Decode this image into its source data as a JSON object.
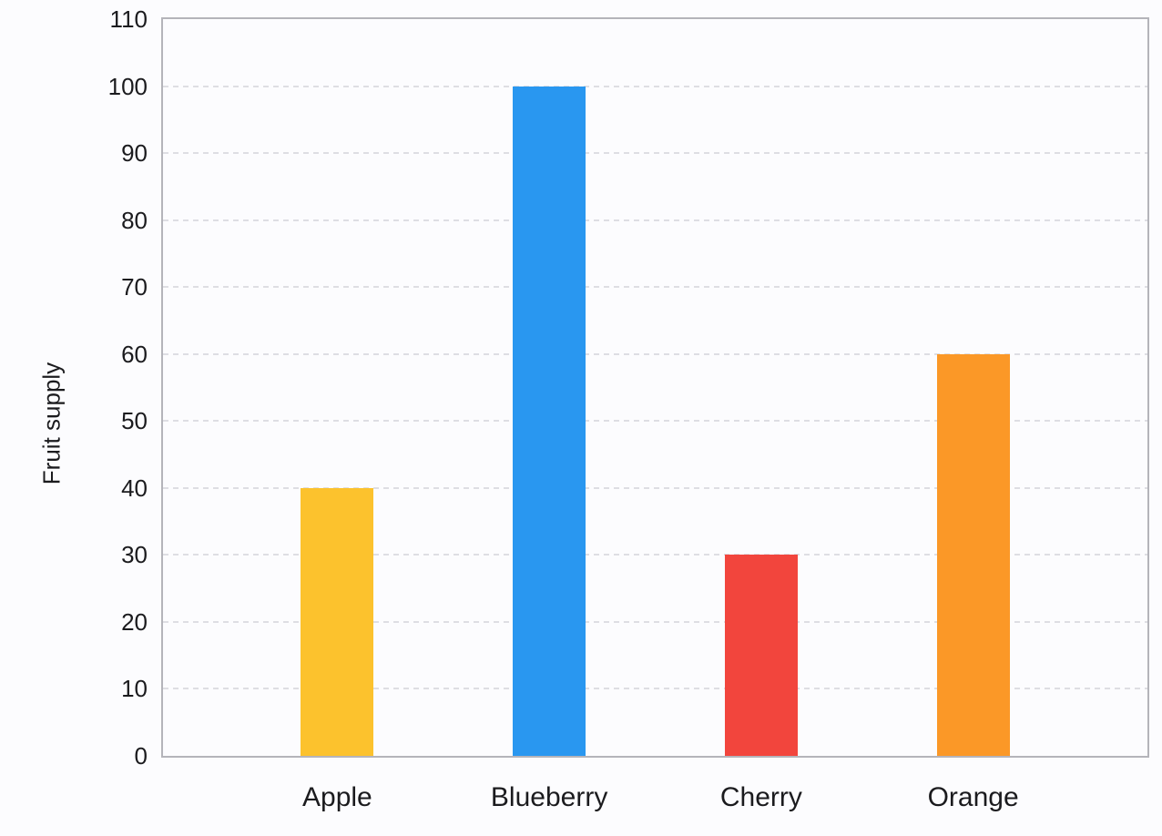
{
  "chart_data": {
    "type": "bar",
    "categories": [
      "Apple",
      "Blueberry",
      "Cherry",
      "Orange"
    ],
    "values": [
      40,
      100,
      30,
      60
    ],
    "bar_colors": [
      "#fcc22d",
      "#2997f0",
      "#f2453d",
      "#fb9827"
    ],
    "title": "",
    "xlabel": "",
    "ylabel": "Fruit supply",
    "ylim": [
      0,
      110
    ],
    "yticks": [
      0,
      10,
      20,
      30,
      40,
      50,
      60,
      70,
      80,
      90,
      100,
      110
    ],
    "grid": "horizontal-dashed",
    "legend": "none"
  },
  "colors": {
    "background": "#fcfcfe",
    "plot_background": "#fcfcfe",
    "axis_border": "#b4b4ba",
    "gridline": "#dedee3",
    "text": "#1b1b1e"
  }
}
